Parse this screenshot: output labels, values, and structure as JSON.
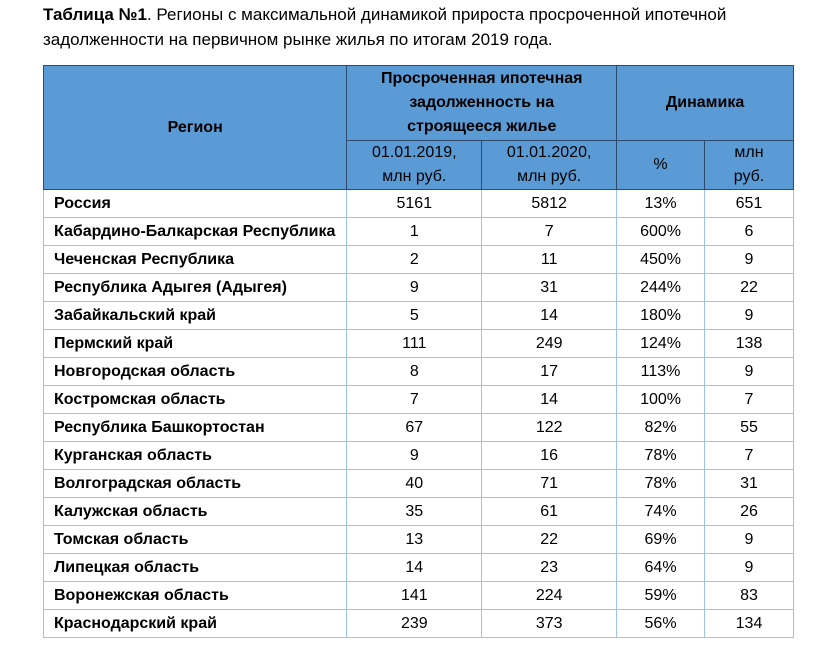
{
  "caption": {
    "label": "Таблица №1",
    "text": ". Регионы с максимальной динамикой прироста просроченной ипотечной задолженности на первичном рынке жилья по итогам 2019 года."
  },
  "table": {
    "header": {
      "region": "Регион",
      "overdue": "Просроченная ипотечная задолженность на строящееся жилье",
      "dynamics": "Динамика",
      "sub": [
        "01.01.2019, млн руб.",
        "01.01.2020, млн руб.",
        "%",
        "млн руб."
      ]
    },
    "rows": [
      [
        "Россия",
        5161,
        5812,
        "13%",
        651
      ],
      [
        "Кабардино-Балкарская Республика",
        1,
        7,
        "600%",
        6
      ],
      [
        "Чеченская Республика",
        2,
        11,
        "450%",
        9
      ],
      [
        "Республика Адыгея (Адыгея)",
        9,
        31,
        "244%",
        22
      ],
      [
        "Забайкальский край",
        5,
        14,
        "180%",
        9
      ],
      [
        "Пермский край",
        111,
        249,
        "124%",
        138
      ],
      [
        "Новгородская область",
        8,
        17,
        "113%",
        9
      ],
      [
        "Костромская область",
        7,
        14,
        "100%",
        7
      ],
      [
        "Республика Башкортостан",
        67,
        122,
        "82%",
        55
      ],
      [
        "Курганская область",
        9,
        16,
        "78%",
        7
      ],
      [
        "Волгоградская область",
        40,
        71,
        "78%",
        31
      ],
      [
        "Калужская область",
        35,
        61,
        "74%",
        26
      ],
      [
        "Томская область",
        13,
        22,
        "69%",
        9
      ],
      [
        "Липецкая область",
        14,
        23,
        "64%",
        9
      ],
      [
        "Воронежская область",
        141,
        224,
        "59%",
        83
      ],
      [
        "Краснодарский край",
        239,
        373,
        "56%",
        134
      ]
    ]
  }
}
